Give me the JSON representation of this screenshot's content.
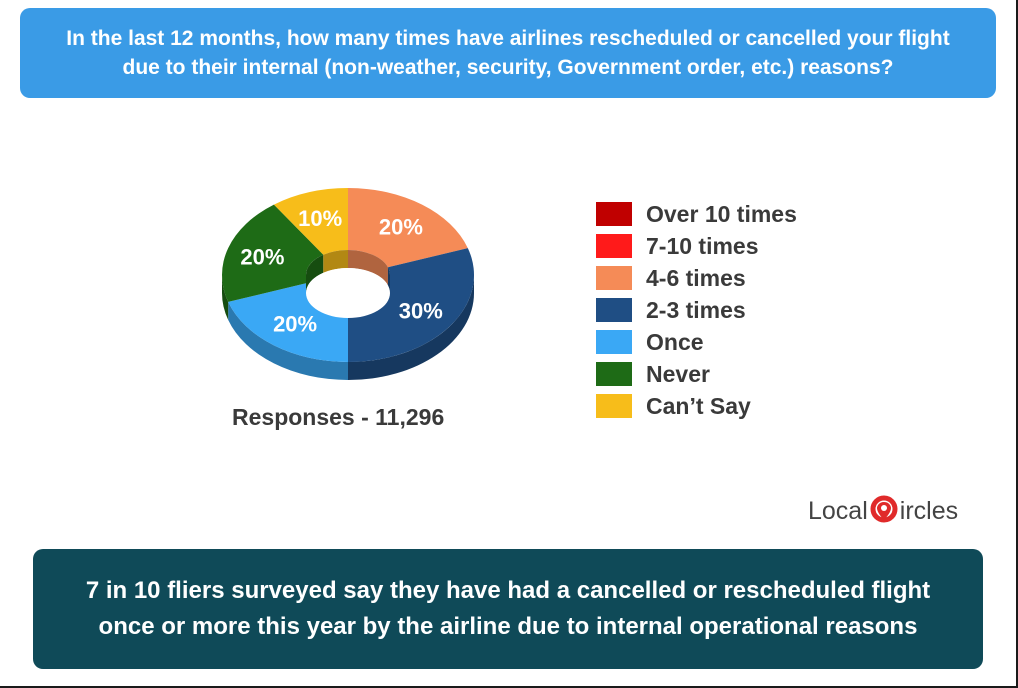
{
  "question": "In the last 12 months, how many times have airlines rescheduled or cancelled your flight due to their internal (non-weather, security, Government order, etc.) reasons?",
  "responses_label": "Responses - 11,296",
  "logo": {
    "text_before": "Local",
    "text_after": "ircles",
    "icon": "circle-pin-icon"
  },
  "conclusion": "7 in 10 fliers surveyed say they have had a cancelled or rescheduled flight once or more this year by the airline due to internal operational reasons",
  "chart_data": {
    "type": "pie",
    "style": "3d-donut",
    "categories": [
      "Over 10 times",
      "7-10 times",
      "4-6 times",
      "2-3 times",
      "Once",
      "Never",
      "Can’t Say"
    ],
    "values": [
      0,
      0,
      20,
      30,
      20,
      20,
      10
    ],
    "value_labels": [
      "",
      "",
      "20%",
      "30%",
      "20%",
      "20%",
      "10%"
    ],
    "colors": [
      "#c00000",
      "#ff1a1a",
      "#f58b57",
      "#1f4e84",
      "#3aa8f5",
      "#1e6b16",
      "#f7bd1a"
    ],
    "legend_position": "right"
  }
}
